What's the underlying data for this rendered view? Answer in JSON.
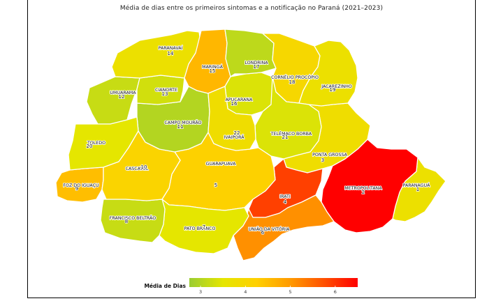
{
  "title": "Média de dias entre os primeiros sintomas e a notificação no Paraná (2021–2023)",
  "legend": {
    "title": "Média de Dias",
    "ticks": [
      "3",
      "4",
      "5",
      "6"
    ],
    "tick_values": [
      3,
      4,
      5,
      6
    ],
    "min": 2.75,
    "max": 6.5,
    "colors": [
      "#9acd32",
      "#e5e600",
      "#ffd000",
      "#ff9a00",
      "#ff5000",
      "#ff0000"
    ]
  },
  "regions": [
    {
      "id": "1",
      "name": "PARANAGUÁ",
      "number": "1",
      "value": 3.7
    },
    {
      "id": "2",
      "name": "METROPOLITANA",
      "number": "2",
      "value": 6.5
    },
    {
      "id": "3",
      "name": "PONTA GROSSA",
      "number": "3",
      "value": 3.8
    },
    {
      "id": "4",
      "name": "IRATI",
      "number": "4",
      "value": 5.9
    },
    {
      "id": "5",
      "name": "GUARAPUAVA",
      "number": "5",
      "value": 4.2
    },
    {
      "id": "6",
      "name": "UNIÃO DA VITÓRIA",
      "number": "6",
      "value": 5.1
    },
    {
      "id": "7",
      "name": "PATO BRANCO",
      "number": "7",
      "value": 3.5
    },
    {
      "id": "8",
      "name": "FRANCISCO BELTRÃO",
      "number": "8",
      "value": 3.2
    },
    {
      "id": "9",
      "name": "FOZ DO IGUAÇU",
      "number": "9",
      "value": 4.5
    },
    {
      "id": "10",
      "name": "CASCAVEL",
      "number": "10",
      "value": 4.1
    },
    {
      "id": "11",
      "name": "CAMPO MOURÃO",
      "number": "11",
      "value": 3.0
    },
    {
      "id": "12",
      "name": "UMUARAMA",
      "number": "12",
      "value": 3.2
    },
    {
      "id": "13",
      "name": "CIANORTE",
      "number": "13",
      "value": 3.3
    },
    {
      "id": "14",
      "name": "PARANAVAÍ",
      "number": "14",
      "value": 3.7
    },
    {
      "id": "15",
      "name": "MARINGÁ",
      "number": "15",
      "value": 4.6
    },
    {
      "id": "16",
      "name": "APUCARANA",
      "number": "16",
      "value": 3.4
    },
    {
      "id": "17",
      "name": "LONDRINA",
      "number": "17",
      "value": 3.1
    },
    {
      "id": "18",
      "name": "CORNÉLIO PROCÓPIO",
      "number": "18",
      "value": 4.0
    },
    {
      "id": "19",
      "name": "JACAREZINHO",
      "number": "19",
      "value": 3.7
    },
    {
      "id": "20",
      "name": "TOLEDO",
      "number": "20",
      "value": 3.5
    },
    {
      "id": "21",
      "name": "TELÊMACO BORBA",
      "number": "21",
      "value": 3.4
    },
    {
      "id": "22",
      "name": "IVAIPORÃ",
      "number": "22",
      "value": 3.8
    }
  ]
}
